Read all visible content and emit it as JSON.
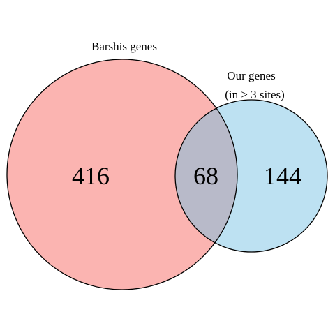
{
  "diagram": {
    "type": "venn",
    "sets": [
      {
        "id": "barshis",
        "label": "Barshis genes",
        "color": "#fbb4b1"
      },
      {
        "id": "ours",
        "label_lines": [
          "Our genes",
          "(in > 3 sites)"
        ],
        "color": "#bde1f2"
      }
    ],
    "regions": {
      "barshis_only": "416",
      "both": "68",
      "ours_only": "144"
    },
    "overlap_color": "#b8bac9",
    "outline_color": "#000000"
  }
}
